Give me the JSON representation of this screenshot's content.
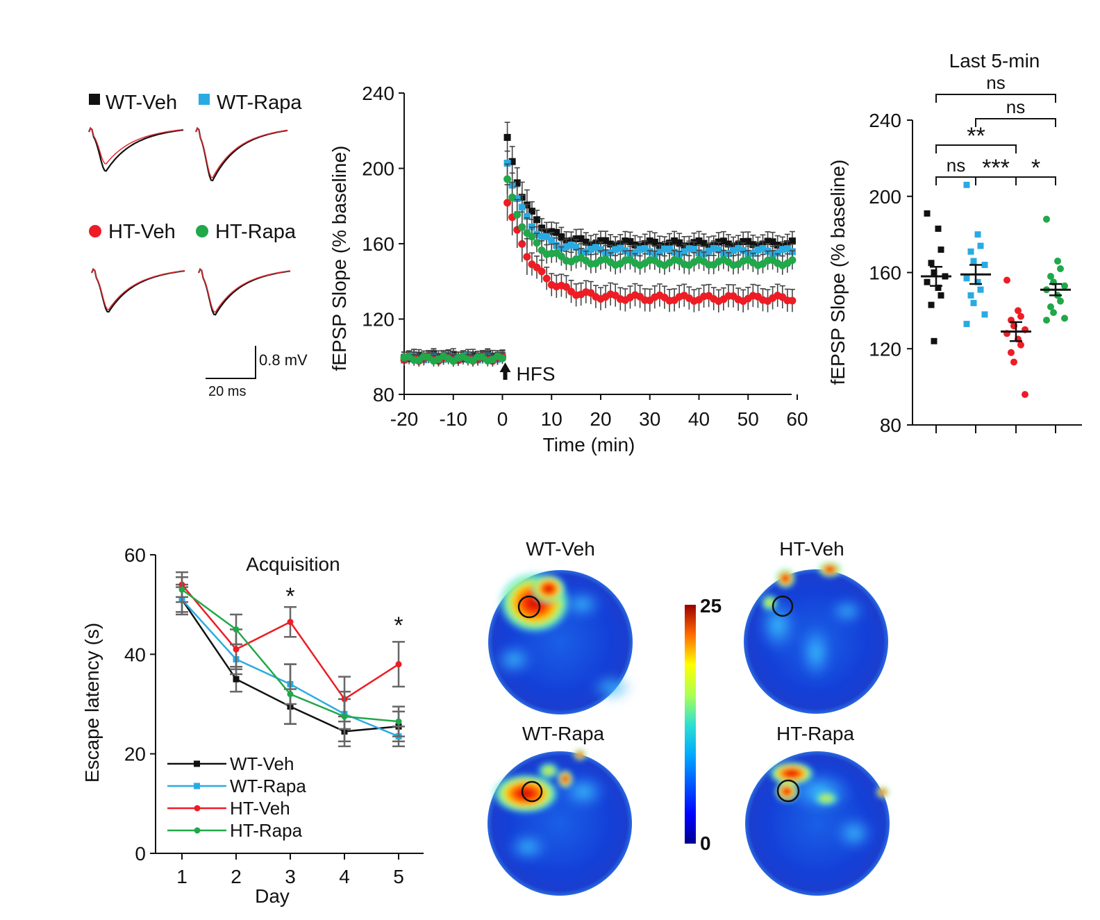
{
  "colors": {
    "wt_veh": "#111111",
    "wt_rapa": "#29abe2",
    "ht_veh": "#ee1c24",
    "ht_rapa": "#20a84a",
    "error": "#555555"
  },
  "traces": {
    "legend": [
      "WT-Veh",
      "WT-Rapa",
      "HT-Veh",
      "HT-Rapa"
    ],
    "scale_v": "0.8 mV",
    "scale_t": "20 ms"
  },
  "chart_data": [
    {
      "type": "scatter",
      "title": "",
      "xlabel": "Time (min)",
      "ylabel": "fEPSP Slope (% baseline)",
      "xlim": [
        -20,
        60
      ],
      "ylim": [
        80,
        240
      ],
      "xticks": [
        -20,
        -10,
        0,
        10,
        20,
        30,
        40,
        50,
        60
      ],
      "yticks": [
        80,
        120,
        160,
        200,
        240
      ],
      "annotation": "HFS",
      "annotation_x": 0,
      "series": [
        {
          "name": "WT-Veh",
          "baseline": 100,
          "peak": 215,
          "plateau": 160,
          "tau": 4,
          "err": 5
        },
        {
          "name": "WT-Rapa",
          "baseline": 99.5,
          "peak": 203,
          "plateau": 156,
          "tau": 4,
          "err": 4
        },
        {
          "name": "HT-Veh",
          "baseline": 99,
          "peak": 183,
          "plateau": 131,
          "tau": 5,
          "err": 6
        },
        {
          "name": "HT-Rapa",
          "baseline": 99,
          "peak": 193,
          "plateau": 150,
          "tau": 4,
          "err": 5
        }
      ]
    },
    {
      "type": "scatter",
      "title": "Last 5-min",
      "xlabel": "",
      "ylabel": "fEPSP Slope (% baseline)",
      "ylim": [
        80,
        240
      ],
      "yticks": [
        80,
        120,
        160,
        200,
        240
      ],
      "groups": [
        {
          "name": "WT-Veh",
          "mean": 158,
          "sem": 5,
          "points": [
            191,
            183,
            172,
            165,
            160,
            158,
            155,
            152,
            148,
            143,
            124
          ]
        },
        {
          "name": "WT-Rapa",
          "mean": 159,
          "sem": 5,
          "points": [
            206,
            180,
            174,
            171,
            166,
            164,
            157,
            155,
            151,
            148,
            144,
            138,
            133
          ]
        },
        {
          "name": "HT-Veh",
          "mean": 129,
          "sem": 5,
          "points": [
            156,
            140,
            137,
            135,
            132,
            130,
            128,
            125,
            122,
            118,
            113,
            96
          ]
        },
        {
          "name": "HT-Rapa",
          "mean": 151,
          "sem": 3,
          "points": [
            188,
            166,
            162,
            158,
            155,
            153,
            151,
            148,
            145,
            142,
            139,
            136,
            135
          ]
        }
      ],
      "significance": [
        {
          "from": 0,
          "to": 3,
          "label": "ns"
        },
        {
          "from": 1,
          "to": 3,
          "label": "ns"
        },
        {
          "from": 0,
          "to": 2,
          "label": "**"
        },
        {
          "from": 0,
          "to": 1,
          "label": "ns"
        },
        {
          "from": 1,
          "to": 2,
          "label": "***"
        },
        {
          "from": 2,
          "to": 3,
          "label": "*"
        }
      ]
    },
    {
      "type": "line",
      "title": "Acquisition",
      "xlabel": "Day",
      "ylabel": "Escape latency (s)",
      "categories": [
        1,
        2,
        3,
        4,
        5
      ],
      "ylim": [
        0,
        60
      ],
      "yticks": [
        0,
        20,
        40,
        60
      ],
      "series": [
        {
          "name": "WT-Veh",
          "marker": "square",
          "values": [
            51,
            35,
            29.5,
            24.5,
            25.5
          ],
          "err": [
            2.5,
            2.5,
            3.5,
            3,
            3
          ]
        },
        {
          "name": "WT-Rapa",
          "marker": "square",
          "values": [
            51,
            39,
            34,
            28,
            23.5
          ],
          "err": [
            3,
            3,
            4,
            3,
            2
          ]
        },
        {
          "name": "HT-Veh",
          "marker": "circle",
          "values": [
            54,
            41,
            46.5,
            31,
            38
          ],
          "err": [
            2.5,
            4,
            3,
            4.5,
            4.5
          ]
        },
        {
          "name": "HT-Rapa",
          "marker": "circle",
          "values": [
            53,
            45,
            32,
            27.5,
            26.5
          ],
          "err": [
            2.5,
            3,
            6,
            5,
            3
          ]
        }
      ],
      "annotations": [
        {
          "day": 3,
          "label": "*"
        },
        {
          "day": 5,
          "label": "*"
        }
      ]
    },
    {
      "type": "heatmap",
      "panels": [
        "WT-Veh",
        "HT-Veh",
        "WT-Rapa",
        "HT-Rapa"
      ],
      "colorbar_min": "0",
      "colorbar_max": "25"
    }
  ]
}
